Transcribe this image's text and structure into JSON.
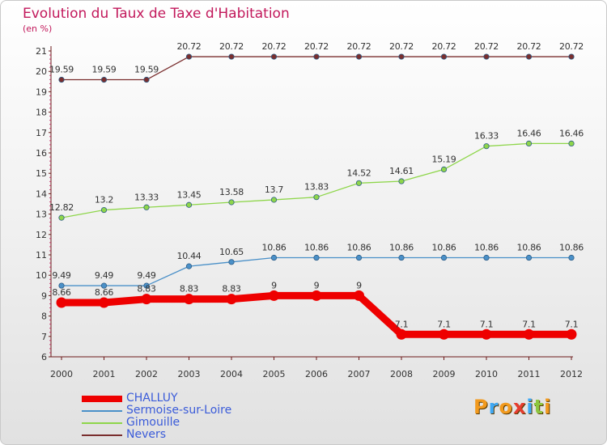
{
  "title": "Evolution du Taux de Taxe d'Habitation",
  "unit_label": "(en %)",
  "logo_text": "Proxiti",
  "colors": {
    "title": "#c2185b",
    "legend_text": "#3a5bd9",
    "axis": "#6b1a1a"
  },
  "chart_data": {
    "type": "line",
    "title": "Evolution du Taux de Taxe d'Habitation",
    "ylabel": "(en %)",
    "xlabel": "",
    "x": [
      "2000",
      "2001",
      "2002",
      "2003",
      "2004",
      "2005",
      "2006",
      "2007",
      "2008",
      "2009",
      "2010",
      "2011",
      "2012"
    ],
    "ylim": [
      6,
      21
    ],
    "yticks": [
      6,
      7,
      8,
      9,
      10,
      11,
      12,
      13,
      14,
      15,
      16,
      17,
      18,
      19,
      20,
      21
    ],
    "grid": false,
    "legend_position": "bottom-left",
    "series": [
      {
        "name": "CHALLUY",
        "color": "#ee0000",
        "values": [
          8.66,
          8.66,
          8.83,
          8.83,
          8.83,
          9,
          9,
          9,
          7.1,
          7.1,
          7.1,
          7.1,
          7.1
        ],
        "labels": [
          "8.66",
          "8.66",
          "8.83",
          "8.83",
          "8.83",
          "9",
          "9",
          "9",
          "7.1",
          "7.1",
          "7.1",
          "7.1",
          "7.1"
        ]
      },
      {
        "name": "Sermoise-sur-Loire",
        "color": "#4a90c8",
        "values": [
          9.49,
          9.49,
          9.49,
          10.44,
          10.65,
          10.86,
          10.86,
          10.86,
          10.86,
          10.86,
          10.86,
          10.86,
          10.86
        ],
        "labels": [
          "9.49",
          "9.49",
          "9.49",
          "10.44",
          "10.65",
          "10.86",
          "10.86",
          "10.86",
          "10.86",
          "10.86",
          "10.86",
          "10.86",
          "10.86"
        ]
      },
      {
        "name": "Gimouille",
        "color": "#8ed64a",
        "values": [
          12.82,
          13.2,
          13.33,
          13.45,
          13.58,
          13.7,
          13.83,
          14.52,
          14.61,
          15.19,
          16.33,
          16.46,
          16.46
        ],
        "labels": [
          "12.82",
          "13.2",
          "13.33",
          "13.45",
          "13.58",
          "13.7",
          "13.83",
          "14.52",
          "14.61",
          "15.19",
          "16.33",
          "16.46",
          "16.46"
        ]
      },
      {
        "name": "Nevers",
        "color": "#7a2e2e",
        "values": [
          19.59,
          19.59,
          19.59,
          20.72,
          20.72,
          20.72,
          20.72,
          20.72,
          20.72,
          20.72,
          20.72,
          20.72,
          20.72
        ],
        "labels": [
          "19.59",
          "19.59",
          "19.59",
          "20.72",
          "20.72",
          "20.72",
          "20.72",
          "20.72",
          "20.72",
          "20.72",
          "20.72",
          "20.72",
          "20.72"
        ]
      }
    ]
  }
}
